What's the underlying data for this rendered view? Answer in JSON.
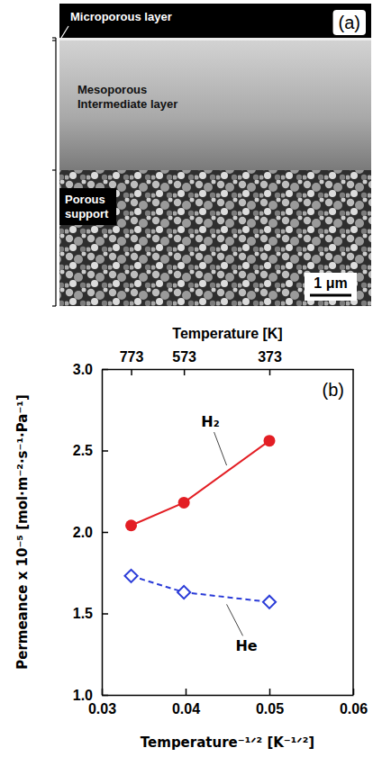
{
  "panel_a": {
    "label": "(a)",
    "layers": [
      "Microporous layer",
      "Mesoporous Intermediate layer",
      "Porous support"
    ],
    "scale_bar": "1 μm"
  },
  "chart_data": {
    "type": "line",
    "annotations": [
      "(b)"
    ],
    "xlabel": "Temperature⁻¹ᐟ² [K⁻¹ᐟ²]",
    "ylabel": "Permeance x 10⁻⁵ [mol·m⁻²·s⁻¹·Pa⁻¹]",
    "x2label": "Temperature [K]",
    "x": [
      0.0335,
      0.0398,
      0.05
    ],
    "series": [
      {
        "name": "H₂",
        "color": "#e31e24",
        "marker": "circle",
        "line_style": "solid",
        "values": [
          2.04,
          2.18,
          2.56
        ]
      },
      {
        "name": "He",
        "color": "#2b3cd8",
        "marker": "diamond",
        "line_style": "dashed",
        "values": [
          1.73,
          1.63,
          1.57
        ]
      }
    ],
    "xlim": [
      0.03,
      0.06
    ],
    "xticks": [
      0.03,
      0.04,
      0.05,
      0.06
    ],
    "x2lim": [
      0.03,
      0.06
    ],
    "x2ticks": [
      {
        "value": 0.0335,
        "label": "773"
      },
      {
        "value": 0.0398,
        "label": "573"
      },
      {
        "value": 0.05,
        "label": "373"
      }
    ],
    "ylim": [
      1,
      3
    ],
    "yticks": [
      {
        "value": 1,
        "label": "1.0"
      },
      {
        "value": 1.5,
        "label": "1.5"
      },
      {
        "value": 2,
        "label": "2.0"
      },
      {
        "value": 2.5,
        "label": "2.5"
      },
      {
        "value": 3,
        "label": "3.0"
      }
    ]
  }
}
